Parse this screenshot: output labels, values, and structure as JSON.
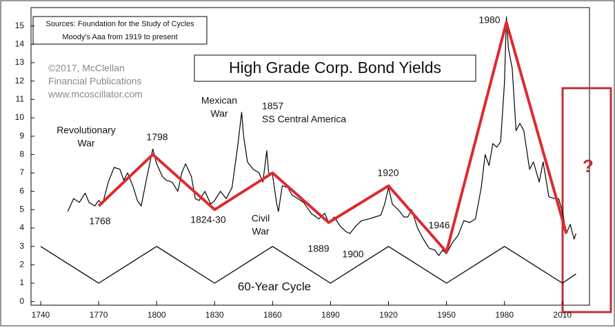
{
  "chart_data": {
    "type": "line",
    "title": "High Grade Corp. Bond Yields",
    "sources": [
      "Sources: Foundation for the Study of Cycles",
      "Moody's Aaa from 1919 to present"
    ],
    "copyright": [
      "©2017, McClellan",
      "Financial Publications",
      "www.mcoscillator.com"
    ],
    "cycle_label": "60-Year Cycle",
    "question": "?",
    "annotations": [
      {
        "lines": [
          "Revolutionary",
          "War"
        ]
      },
      {
        "lines": [
          "1798"
        ]
      },
      {
        "lines": [
          "1768"
        ]
      },
      {
        "lines": [
          "Mexican",
          "War"
        ]
      },
      {
        "lines": [
          "1857",
          "SS Central America"
        ]
      },
      {
        "lines": [
          "1824-30"
        ]
      },
      {
        "lines": [
          "Civil",
          "War"
        ]
      },
      {
        "lines": [
          "1889"
        ]
      },
      {
        "lines": [
          "1900"
        ]
      },
      {
        "lines": [
          "1920"
        ]
      },
      {
        "lines": [
          "1946"
        ]
      },
      {
        "lines": [
          "1980"
        ]
      }
    ],
    "xlim": [
      1735,
      2024
    ],
    "ylim": [
      -0.2,
      16
    ],
    "xticks": [
      1740,
      1770,
      1800,
      1830,
      1860,
      1890,
      1920,
      1950,
      1980,
      2010
    ],
    "yticks": [
      0,
      1,
      2,
      3,
      4,
      5,
      6,
      7,
      8,
      9,
      10,
      11,
      12,
      13,
      14,
      15
    ],
    "series": [
      {
        "color": "#000000",
        "x": [
          1754,
          1757,
          1760,
          1763,
          1765,
          1768,
          1770,
          1772,
          1775,
          1778,
          1781,
          1783,
          1785,
          1788,
          1790,
          1792,
          1795,
          1797,
          1798,
          1800,
          1803,
          1805,
          1808,
          1811,
          1813,
          1815,
          1818,
          1820,
          1822,
          1825,
          1828,
          1830,
          1833,
          1836,
          1839,
          1842,
          1844,
          1845,
          1847,
          1850,
          1853,
          1855,
          1857,
          1858,
          1860,
          1862,
          1863,
          1865,
          1868,
          1870,
          1873,
          1876,
          1880,
          1884,
          1887,
          1889,
          1892,
          1895,
          1898,
          1900,
          1903,
          1906,
          1910,
          1913,
          1916,
          1918,
          1920,
          1922,
          1925,
          1928,
          1930,
          1932,
          1935,
          1938,
          1941,
          1944,
          1946,
          1948,
          1950,
          1953,
          1956,
          1959,
          1962,
          1965,
          1968,
          1970,
          1972,
          1974,
          1976,
          1978,
          1980,
          1981,
          1982,
          1984,
          1986,
          1988,
          1990,
          1993,
          1995,
          1998,
          2000,
          2003,
          2006,
          2008,
          2010,
          2012,
          2014,
          2016,
          2017
        ],
        "values": [
          4.9,
          5.6,
          5.4,
          5.9,
          5.4,
          5.2,
          5.5,
          5.3,
          6.5,
          7.3,
          7.2,
          6.6,
          7.0,
          6.2,
          5.5,
          5.2,
          6.8,
          7.8,
          8.3,
          7.5,
          6.8,
          6.6,
          6.5,
          6.0,
          7.0,
          7.5,
          6.8,
          5.6,
          5.5,
          6.0,
          5.3,
          5.5,
          6.0,
          5.6,
          6.2,
          8.5,
          10.3,
          9.0,
          7.6,
          7.2,
          7.0,
          6.5,
          8.2,
          7.0,
          6.9,
          5.4,
          4.9,
          6.3,
          6.2,
          5.8,
          5.6,
          5.4,
          4.8,
          4.5,
          4.8,
          4.3,
          4.6,
          4.1,
          3.8,
          3.7,
          4.1,
          4.4,
          4.5,
          4.6,
          4.7,
          5.3,
          6.2,
          5.3,
          5.0,
          4.6,
          4.6,
          5.0,
          4.0,
          3.4,
          2.9,
          2.8,
          2.5,
          2.8,
          2.6,
          3.2,
          3.6,
          4.4,
          4.3,
          4.5,
          6.2,
          8.0,
          7.4,
          8.6,
          8.4,
          8.7,
          11.9,
          15.5,
          13.8,
          12.7,
          9.3,
          9.7,
          9.3,
          7.2,
          7.6,
          6.5,
          7.6,
          5.7,
          5.6,
          5.6,
          4.9,
          3.7,
          4.2,
          3.4,
          3.7
        ]
      },
      {
        "color": "#dd2a2f",
        "x": [
          1770,
          1798,
          1830,
          1860,
          1889,
          1920,
          1950,
          1981,
          2012
        ],
        "values": [
          5.2,
          8,
          5,
          7,
          4.3,
          6.3,
          2.7,
          15.2,
          3.7
        ]
      },
      {
        "color": "#000000",
        "x": [
          1740,
          1770,
          1800,
          1830,
          1860,
          1890,
          1920,
          1950,
          1980,
          2010,
          2017
        ],
        "values": [
          3,
          1,
          3,
          1,
          3,
          1,
          3,
          1,
          3,
          1,
          1.5
        ]
      }
    ]
  }
}
